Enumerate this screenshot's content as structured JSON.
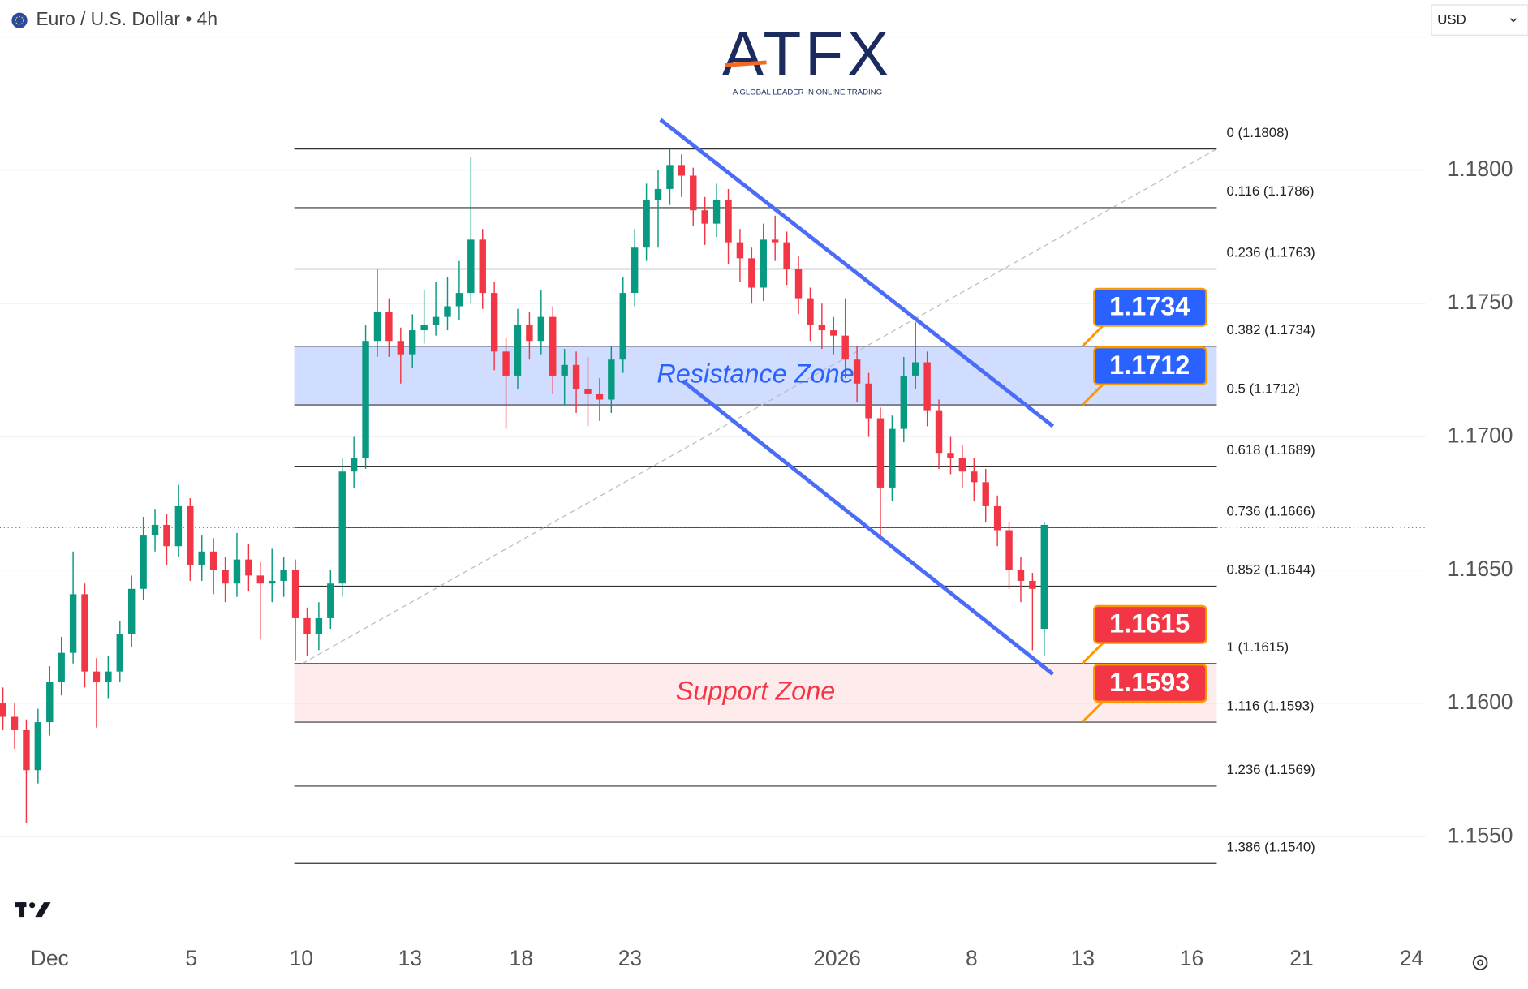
{
  "header": {
    "symbol": "Euro / U.S. Dollar • 4h",
    "currency": "USD"
  },
  "logo": {
    "name": "ATFX",
    "tagline": "A GLOBAL LEADER IN ONLINE TRADING"
  },
  "chart_data": {
    "type": "candlestick",
    "x": [
      0,
      1,
      2,
      3,
      4,
      5,
      6,
      7,
      8,
      9,
      10,
      11,
      12,
      13,
      14,
      15,
      16,
      17,
      18,
      19,
      20,
      21,
      22,
      23,
      24,
      25,
      26,
      27,
      28,
      29,
      30,
      31,
      32,
      33,
      34,
      35,
      36,
      37,
      38,
      39,
      40,
      41,
      42,
      43,
      44,
      45,
      46,
      47,
      48,
      49,
      50,
      51,
      52,
      53,
      54,
      55,
      56,
      57,
      58,
      59,
      60,
      61,
      62,
      63,
      64,
      65,
      66,
      67,
      68,
      69,
      70,
      71,
      72,
      73,
      74,
      75,
      76,
      77,
      78,
      79,
      80,
      81,
      82,
      83,
      84,
      85,
      86,
      87,
      88,
      89
    ],
    "open": [
      1.16,
      1.1595,
      1.159,
      1.1575,
      1.1593,
      1.1608,
      1.1619,
      1.1641,
      1.1612,
      1.1608,
      1.1612,
      1.1626,
      1.1643,
      1.1663,
      1.1667,
      1.1659,
      1.1674,
      1.1652,
      1.1657,
      1.165,
      1.1645,
      1.1654,
      1.1648,
      1.1645,
      1.1646,
      1.165,
      1.1632,
      1.1626,
      1.1632,
      1.1645,
      1.1687,
      1.1692,
      1.1736,
      1.1747,
      1.1736,
      1.1731,
      1.174,
      1.1742,
      1.1745,
      1.1749,
      1.1754,
      1.1774,
      1.1754,
      1.1732,
      1.1723,
      1.1742,
      1.1736,
      1.1745,
      1.1723,
      1.1727,
      1.1718,
      1.1716,
      1.1714,
      1.1729,
      1.1754,
      1.1771,
      1.1789,
      1.1793,
      1.1802,
      1.1798,
      1.1785,
      1.178,
      1.1789,
      1.1773,
      1.1767,
      1.1756,
      1.1774,
      1.1773,
      1.1763,
      1.1752,
      1.1742,
      1.174,
      1.1738,
      1.1729,
      1.172,
      1.1707,
      1.1681,
      1.1703,
      1.1723,
      1.1728,
      1.171,
      1.1694,
      1.1692,
      1.1687,
      1.1683,
      1.1674,
      1.1665,
      1.165,
      1.1646,
      1.1628
    ],
    "high": [
      1.1606,
      1.16,
      1.1594,
      1.1598,
      1.1614,
      1.1625,
      1.1657,
      1.1645,
      1.1617,
      1.1618,
      1.1631,
      1.1648,
      1.167,
      1.1673,
      1.1671,
      1.1682,
      1.1677,
      1.1663,
      1.1662,
      1.1655,
      1.1664,
      1.166,
      1.1653,
      1.1658,
      1.1655,
      1.1654,
      1.1636,
      1.1638,
      1.165,
      1.1692,
      1.17,
      1.1742,
      1.1763,
      1.1752,
      1.1741,
      1.1746,
      1.1755,
      1.1758,
      1.176,
      1.1766,
      1.1805,
      1.1778,
      1.1758,
      1.1737,
      1.1748,
      1.1747,
      1.1755,
      1.1749,
      1.1733,
      1.1732,
      1.173,
      1.1722,
      1.1734,
      1.176,
      1.1778,
      1.1795,
      1.18,
      1.1808,
      1.1806,
      1.1801,
      1.179,
      1.1795,
      1.1793,
      1.1778,
      1.1771,
      1.178,
      1.1783,
      1.1777,
      1.1768,
      1.1756,
      1.175,
      1.1745,
      1.1752,
      1.1734,
      1.1724,
      1.1711,
      1.1708,
      1.173,
      1.1743,
      1.1732,
      1.1714,
      1.17,
      1.1697,
      1.1692,
      1.1688,
      1.1678,
      1.1668,
      1.1655,
      1.1649,
      1.1668
    ],
    "low": [
      1.159,
      1.1583,
      1.1555,
      1.157,
      1.1588,
      1.1603,
      1.1615,
      1.1606,
      1.1591,
      1.1602,
      1.1608,
      1.1621,
      1.1639,
      1.1657,
      1.1652,
      1.1655,
      1.1646,
      1.1646,
      1.1641,
      1.1638,
      1.164,
      1.1642,
      1.1624,
      1.1638,
      1.164,
      1.1616,
      1.1618,
      1.162,
      1.1628,
      1.164,
      1.1681,
      1.1688,
      1.173,
      1.173,
      1.172,
      1.1726,
      1.1735,
      1.1738,
      1.174,
      1.1744,
      1.175,
      1.1748,
      1.1725,
      1.1703,
      1.1718,
      1.1729,
      1.1731,
      1.1716,
      1.1712,
      1.1709,
      1.1704,
      1.1706,
      1.1709,
      1.1724,
      1.1749,
      1.1766,
      1.1771,
      1.1787,
      1.179,
      1.1779,
      1.1772,
      1.1775,
      1.1765,
      1.1758,
      1.175,
      1.1751,
      1.1766,
      1.1757,
      1.1746,
      1.1736,
      1.1733,
      1.1731,
      1.1722,
      1.1713,
      1.17,
      1.1661,
      1.1676,
      1.1698,
      1.1718,
      1.1704,
      1.1688,
      1.1686,
      1.1681,
      1.1676,
      1.1668,
      1.1659,
      1.1643,
      1.1638,
      1.162,
      1.1618
    ],
    "close": [
      1.1595,
      1.159,
      1.1575,
      1.1593,
      1.1608,
      1.1619,
      1.1641,
      1.1612,
      1.1608,
      1.1612,
      1.1626,
      1.1643,
      1.1663,
      1.1667,
      1.1659,
      1.1674,
      1.1652,
      1.1657,
      1.165,
      1.1645,
      1.1654,
      1.1648,
      1.1645,
      1.1646,
      1.165,
      1.1632,
      1.1626,
      1.1632,
      1.1645,
      1.1687,
      1.1692,
      1.1736,
      1.1747,
      1.1736,
      1.1731,
      1.174,
      1.1742,
      1.1745,
      1.1749,
      1.1754,
      1.1774,
      1.1754,
      1.1732,
      1.1723,
      1.1742,
      1.1736,
      1.1745,
      1.1723,
      1.1727,
      1.1718,
      1.1716,
      1.1714,
      1.1729,
      1.1754,
      1.1771,
      1.1789,
      1.1793,
      1.1802,
      1.1798,
      1.1785,
      1.178,
      1.1789,
      1.1773,
      1.1767,
      1.1756,
      1.1774,
      1.1773,
      1.1763,
      1.1752,
      1.1742,
      1.174,
      1.1738,
      1.1729,
      1.172,
      1.1707,
      1.1681,
      1.1703,
      1.1723,
      1.1728,
      1.171,
      1.1694,
      1.1692,
      1.1687,
      1.1683,
      1.1674,
      1.1665,
      1.165,
      1.1646,
      1.1643,
      1.1667
    ],
    "up_color": "#089981",
    "down_color": "#f23645",
    "xlim": [
      -0.25,
      121.6
    ],
    "xticks": [
      {
        "value": 4.0,
        "label": "Dec"
      },
      {
        "value": 16.1,
        "label": "5"
      },
      {
        "value": 25.5,
        "label": "10"
      },
      {
        "value": 34.8,
        "label": "13"
      },
      {
        "value": 44.3,
        "label": "18"
      },
      {
        "value": 53.6,
        "label": "23"
      },
      {
        "value": 71.3,
        "label": "2026"
      },
      {
        "value": 82.8,
        "label": "8"
      },
      {
        "value": 92.3,
        "label": "13"
      },
      {
        "value": 101.6,
        "label": "16"
      },
      {
        "value": 111.0,
        "label": "21"
      },
      {
        "value": 120.4,
        "label": "24"
      }
    ],
    "ylim": [
      1.1513,
      1.185
    ],
    "yticks": [
      {
        "value": 1.155,
        "label": "1.1550"
      },
      {
        "value": 1.16,
        "label": "1.1600"
      },
      {
        "value": 1.165,
        "label": "1.1650"
      },
      {
        "value": 1.17,
        "label": "1.1700"
      },
      {
        "value": 1.175,
        "label": "1.1750"
      },
      {
        "value": 1.18,
        "label": "1.1800"
      }
    ],
    "grid": true,
    "last_price": 1.1666,
    "fibonacci": {
      "x_range": [
        24.9,
        103.75
      ],
      "trend": {
        "x": [
          25.6,
          103.75
        ],
        "y": [
          1.1615,
          1.1808
        ]
      },
      "levels": [
        {
          "label": "0 (1.1808)",
          "value": 1.1808
        },
        {
          "label": "0.116 (1.1786)",
          "value": 1.1786
        },
        {
          "label": "0.236 (1.1763)",
          "value": 1.1763
        },
        {
          "label": "0.382 (1.1734)",
          "value": 1.1734
        },
        {
          "label": "0.5 (1.1712)",
          "value": 1.1712
        },
        {
          "label": "0.618 (1.1689)",
          "value": 1.1689
        },
        {
          "label": "0.736 (1.1666)",
          "value": 1.1666
        },
        {
          "label": "0.852 (1.1644)",
          "value": 1.1644
        },
        {
          "label": "1 (1.1615)",
          "value": 1.1615
        },
        {
          "label": "1.116 (1.1593)",
          "value": 1.1593
        },
        {
          "label": "1.236 (1.1569)",
          "value": 1.1569
        },
        {
          "label": "1.386 (1.1540)",
          "value": 1.154
        }
      ]
    },
    "zones": [
      {
        "label": "Resistance Zone",
        "low": 1.1712,
        "high": 1.1734,
        "color": "#2962ff"
      },
      {
        "label": "Support Zone",
        "low": 1.1593,
        "high": 1.1615,
        "color": "#f23645"
      }
    ],
    "price_tags": [
      {
        "value": 1.1734,
        "color": "#2962ff"
      },
      {
        "value": 1.1712,
        "color": "#2962ff"
      },
      {
        "value": 1.1615,
        "color": "#f23645"
      },
      {
        "value": 1.1593,
        "color": "#f23645"
      }
    ],
    "channel_color": "#4a6cf7",
    "channel": [
      {
        "x": [
          56.2,
          89.75
        ],
        "y": [
          1.1819,
          1.1704
        ]
      },
      {
        "x": [
          58.1,
          89.75
        ],
        "y": [
          1.1721,
          1.1611
        ]
      }
    ]
  }
}
